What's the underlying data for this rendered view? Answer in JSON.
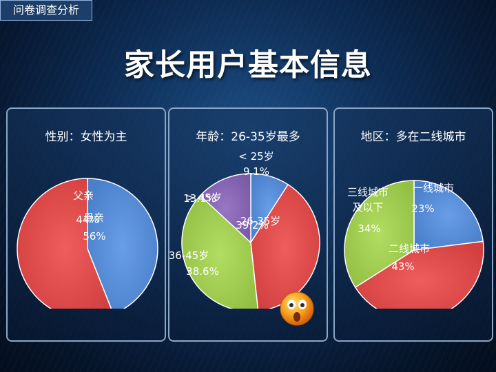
{
  "tag": "问卷调查分析",
  "title": "家长用户基本信息",
  "colors": {
    "red": "#d13f3f",
    "blue": "#4a7fc9",
    "green": "#93c044",
    "purple": "#7a59a6"
  },
  "chart_data": [
    {
      "type": "pie",
      "title": "性别：女性为主",
      "slices": [
        {
          "label": "父亲",
          "value": 44,
          "value_text": "44%",
          "color": "#4a7fc9"
        },
        {
          "label": "母亲",
          "value": 56,
          "value_text": "56%",
          "color": "#d13f3f"
        }
      ]
    },
    {
      "type": "pie",
      "title": "年龄：26-35岁最多",
      "slices": [
        {
          "label": "< 25岁",
          "value": 9.1,
          "value_text": "9.1%",
          "color": "#4a7fc9"
        },
        {
          "label": "26-35岁",
          "value": 39.2,
          "value_text": "39.2%",
          "color": "#d13f3f"
        },
        {
          "label": "36-45岁",
          "value": 38.6,
          "value_text": "38.6%",
          "color": "#93c044"
        },
        {
          "label": "> 45岁",
          "value": 13.1,
          "value_text": "13.1%",
          "color": "#7a59a6"
        }
      ]
    },
    {
      "type": "pie",
      "title": "地区：多在二线城市",
      "slices": [
        {
          "label": "一线城市",
          "value": 23,
          "value_text": "23%",
          "color": "#4a7fc9"
        },
        {
          "label": "二线城市",
          "value": 43,
          "value_text": "43%",
          "color": "#d13f3f"
        },
        {
          "label": "三线城市\n及以下",
          "value": 34,
          "value_text": "34%",
          "color": "#93c044"
        }
      ]
    }
  ]
}
